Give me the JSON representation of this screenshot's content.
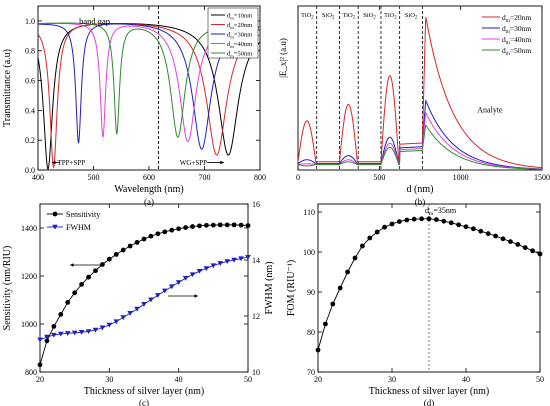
{
  "chart_data": [
    {
      "id": "a",
      "type": "line",
      "caption": "(a)",
      "xlabel": "Wavelength (nm)",
      "ylabel": "Transmittance (a.u)",
      "xlim": [
        400,
        800
      ],
      "ylim": [
        0,
        1.1
      ],
      "xticks": [
        400,
        500,
        600,
        700,
        800
      ],
      "yticks": [
        0.0,
        0.2,
        0.4,
        0.6,
        0.8,
        1.0
      ],
      "vline": 617,
      "annotations": [
        {
          "text": "band gap",
          "x": 502,
          "y": 0.98
        },
        {
          "text": "TPP+SPP",
          "x": 460,
          "y": 0.04
        },
        {
          "text": "WG+SPP",
          "x": 680,
          "y": 0.04
        }
      ],
      "legend_position": "top-right",
      "series": [
        {
          "name": "d_m=10nm",
          "color": "#000000",
          "dips": [
            [
              418,
              0.005,
              10
            ],
            [
              743,
              0.1,
              22
            ]
          ]
        },
        {
          "name": "d_m=20nm",
          "color": "#d62728",
          "dips": [
            [
              428,
              0.015,
              8
            ],
            [
              722,
              0.1,
              22
            ]
          ]
        },
        {
          "name": "d_m=30nm",
          "color": "#1f1fbf",
          "dips": [
            [
              473,
              0.18,
              6
            ],
            [
              695,
              0.14,
              20
            ]
          ]
        },
        {
          "name": "d_m=40nm",
          "color": "#e040e0",
          "dips": [
            [
              517,
              0.22,
              6
            ],
            [
              670,
              0.19,
              18
            ]
          ]
        },
        {
          "name": "d_m=50nm",
          "color": "#2e8b2e",
          "dips": [
            [
              542,
              0.24,
              6
            ],
            [
              652,
              0.22,
              16
            ]
          ]
        }
      ]
    },
    {
      "id": "b",
      "type": "line",
      "caption": "(b)",
      "xlabel": "d (nm)",
      "ylabel": "|E_x|² (a.u)",
      "xlim": [
        0,
        1500
      ],
      "ylim": [
        0,
        40
      ],
      "xticks": [
        0,
        500,
        1000,
        1500
      ],
      "layers": [
        {
          "label": "TiO2",
          "x0": 0,
          "x1": 115
        },
        {
          "label": "SiO2",
          "x0": 115,
          "x1": 255
        },
        {
          "label": "TiO2",
          "x0": 255,
          "x1": 370
        },
        {
          "label": "SiO2",
          "x0": 370,
          "x1": 510
        },
        {
          "label": "TiO2",
          "x0": 510,
          "x1": 625
        },
        {
          "label": "SiO2",
          "x0": 625,
          "x1": 765
        }
      ],
      "annotations": [
        {
          "text": "Analyte",
          "x": 1180,
          "y": 14
        }
      ],
      "legend_position": "top-right",
      "series": [
        {
          "name": "d_m=20nm",
          "color": "#d62728",
          "peaks": [
            12,
            16,
            23,
            7
          ],
          "sio2": 2.0,
          "surface": 37.5
        },
        {
          "name": "d_m=30nm",
          "color": "#1f1fbf",
          "peaks": [
            2.5,
            3.5,
            8,
            6
          ],
          "sio2": 1.6,
          "surface": 17
        },
        {
          "name": "d_m=40nm",
          "color": "#e040e0",
          "peaks": [
            1.5,
            2.5,
            6.5,
            5.5
          ],
          "sio2": 1.4,
          "surface": 14
        },
        {
          "name": "d_m=50nm",
          "color": "#2e8b2e",
          "peaks": [
            1.0,
            2.0,
            5.5,
            5.0
          ],
          "sio2": 1.3,
          "surface": 11
        }
      ]
    },
    {
      "id": "c",
      "type": "line",
      "caption": "(c)",
      "xlabel": "Thickness of silver layer (nm)",
      "ylabel": "Sensitivity (nm/RIU)",
      "ylabel_right": "FWHM (nm)",
      "xlim": [
        20,
        50
      ],
      "xticks": [
        20,
        30,
        40,
        50
      ],
      "ylim": [
        800,
        1500
      ],
      "yticks": [
        800,
        1000,
        1200,
        1400
      ],
      "ylim_right": [
        10,
        16
      ],
      "yticks_right": [
        10,
        12,
        14,
        16
      ],
      "legend_position": "top-left",
      "series": [
        {
          "name": "Sensitivity",
          "color": "#000000",
          "marker": "circle",
          "axis": "left",
          "x": [
            20,
            21,
            22,
            23,
            24,
            25,
            26,
            27,
            28,
            29,
            30,
            31,
            32,
            33,
            34,
            35,
            36,
            37,
            38,
            39,
            40,
            41,
            42,
            43,
            44,
            45,
            46,
            47,
            48,
            49,
            50
          ],
          "y": [
            830,
            930,
            990,
            1040,
            1090,
            1130,
            1165,
            1195,
            1222,
            1248,
            1270,
            1290,
            1308,
            1325,
            1340,
            1354,
            1366,
            1376,
            1384,
            1391,
            1397,
            1402,
            1406,
            1409,
            1411,
            1412,
            1413,
            1413,
            1413,
            1412,
            1410
          ]
        },
        {
          "name": "FWHM",
          "color": "#1f1fbf",
          "marker": "triangle-down",
          "axis": "right",
          "x": [
            20,
            21,
            22,
            23,
            24,
            25,
            26,
            27,
            28,
            29,
            30,
            31,
            32,
            33,
            34,
            35,
            36,
            37,
            38,
            39,
            40,
            41,
            42,
            43,
            44,
            45,
            46,
            47,
            48,
            49,
            50
          ],
          "y": [
            11.15,
            11.25,
            11.32,
            11.36,
            11.38,
            11.4,
            11.42,
            11.45,
            11.5,
            11.58,
            11.68,
            11.8,
            11.95,
            12.1,
            12.25,
            12.42,
            12.58,
            12.74,
            12.9,
            13.05,
            13.2,
            13.35,
            13.48,
            13.6,
            13.7,
            13.8,
            13.88,
            13.95,
            14.0,
            14.05,
            14.1
          ]
        }
      ]
    },
    {
      "id": "d",
      "type": "line",
      "caption": "(d)",
      "xlabel": "Thickness of silver layer (nm)",
      "ylabel": "FOM (RIU⁻¹)",
      "xlim": [
        20,
        50
      ],
      "xticks": [
        20,
        30,
        40,
        50
      ],
      "ylim": [
        70,
        112
      ],
      "yticks": [
        70,
        80,
        90,
        100,
        110
      ],
      "vline": 35,
      "annotations": [
        {
          "text": "dm=35nm",
          "x": 35,
          "y": 109
        }
      ],
      "series": [
        {
          "name": "FOM",
          "color": "#000000",
          "marker": "circle",
          "x": [
            20,
            21,
            22,
            23,
            24,
            25,
            26,
            27,
            28,
            29,
            30,
            31,
            32,
            33,
            34,
            35,
            36,
            37,
            38,
            39,
            40,
            41,
            42,
            43,
            44,
            45,
            46,
            47,
            48,
            49,
            50
          ],
          "y": [
            75.5,
            82,
            87,
            91,
            95,
            98.5,
            101.5,
            103.5,
            105,
            106.2,
            107,
            107.6,
            108,
            108.2,
            108.3,
            108.3,
            108.1,
            107.7,
            107.3,
            106.8,
            106.3,
            105.8,
            105.2,
            104.6,
            104,
            103.3,
            102.6,
            101.9,
            101.1,
            100.3,
            99.5
          ]
        }
      ]
    }
  ]
}
